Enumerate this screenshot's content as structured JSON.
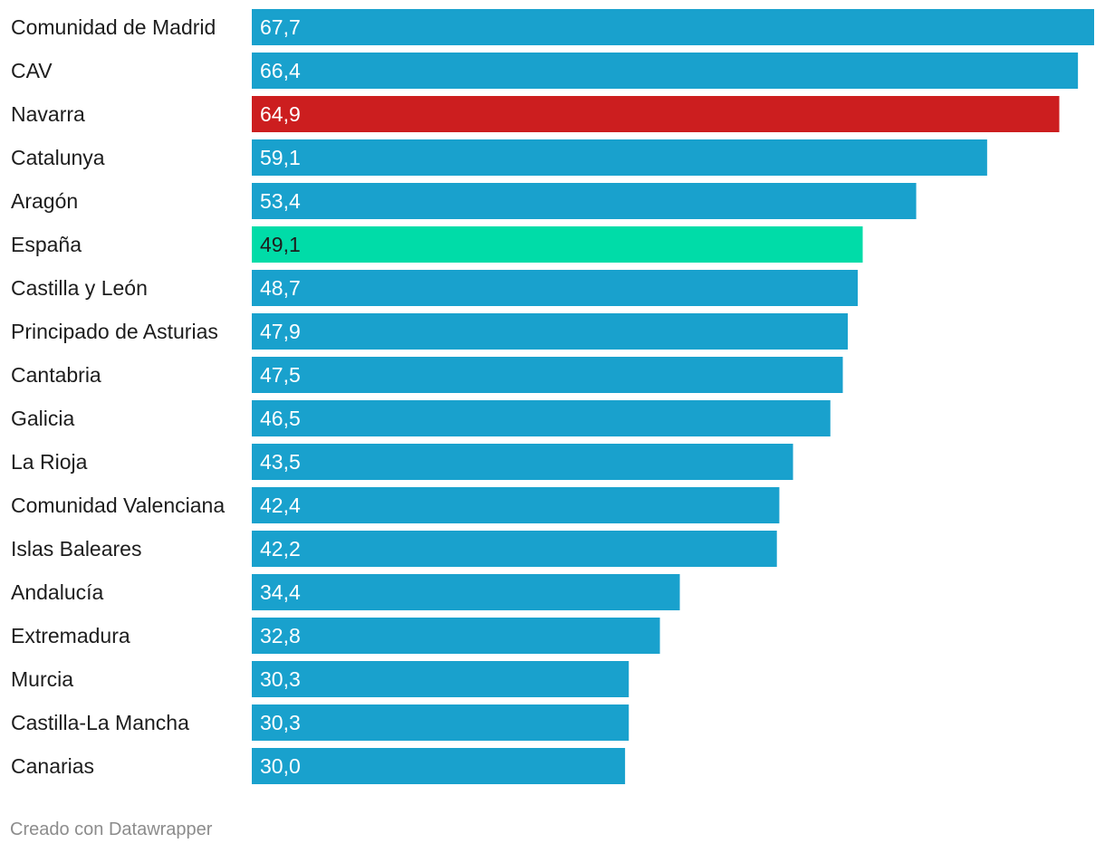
{
  "chart_data": {
    "type": "bar",
    "orientation": "horizontal",
    "categories": [
      "Comunidad de Madrid",
      "CAV",
      "Navarra",
      "Catalunya",
      "Aragón",
      "España",
      "Castilla y León",
      "Principado de Asturias",
      "Cantabria",
      "Galicia",
      "La Rioja",
      "Comunidad Valenciana",
      "Islas Baleares",
      "Andalucía",
      "Extremadura",
      "Murcia",
      "Castilla-La Mancha",
      "Canarias"
    ],
    "values": [
      67.7,
      66.4,
      64.9,
      59.1,
      53.4,
      49.1,
      48.7,
      47.9,
      47.5,
      46.5,
      43.5,
      42.4,
      42.2,
      34.4,
      32.8,
      30.3,
      30.3,
      30.0
    ],
    "value_labels": [
      "67,7",
      "66,4",
      "64,9",
      "59,1",
      "53,4",
      "49,1",
      "48,7",
      "47,9",
      "47,5",
      "46,5",
      "43,5",
      "42,4",
      "42,2",
      "34,4",
      "32,8",
      "30,3",
      "30,3",
      "30,0"
    ],
    "xlim": [
      0,
      67.7
    ],
    "grid": false,
    "colors": {
      "default": "#19a1cd",
      "highlight": "#cc1e1f",
      "average": "#00dca8",
      "label_on_default": "#ffffff",
      "label_on_average": "#1d1d1d"
    },
    "highlight": [
      "Navarra"
    ],
    "average": [
      "España"
    ]
  },
  "footer": {
    "credit": "Creado con Datawrapper"
  }
}
